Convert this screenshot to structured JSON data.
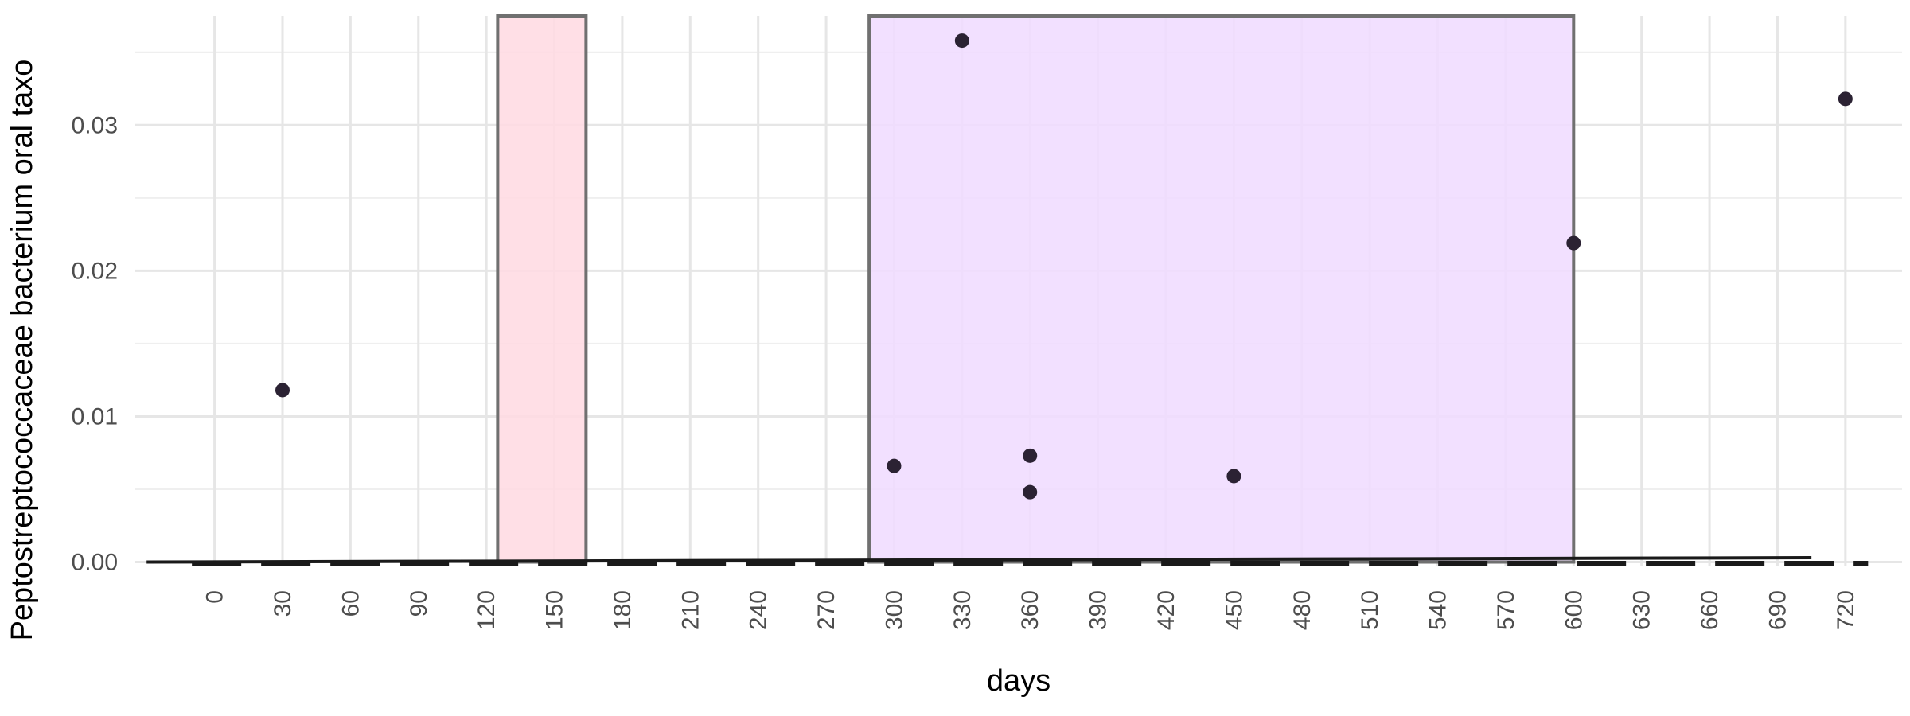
{
  "chart_data": {
    "type": "scatter",
    "xlabel": "days",
    "ylabel": "Peptostreptococcaceae bacterium oral taxo",
    "xlim": [
      -35,
      745
    ],
    "ylim": [
      -0.0003,
      0.0375
    ],
    "x_ticks": [
      0,
      30,
      60,
      90,
      120,
      150,
      180,
      210,
      240,
      270,
      300,
      330,
      360,
      390,
      420,
      450,
      480,
      510,
      540,
      570,
      600,
      630,
      660,
      690,
      720
    ],
    "y_ticks": [
      0.0,
      0.01,
      0.02,
      0.03
    ],
    "y_tick_labels": [
      "0.00",
      "0.01",
      "0.02",
      "0.03"
    ],
    "grid": true,
    "legend": "none",
    "shaded_regions": [
      {
        "x_start": 125,
        "x_end": 164,
        "color": "#ffdbe2"
      },
      {
        "x_start": 289,
        "x_end": 600,
        "color": "#f0dcff"
      }
    ],
    "points": [
      {
        "x": 30,
        "y": 0.0118
      },
      {
        "x": 300,
        "y": 0.0066
      },
      {
        "x": 330,
        "y": 0.0358
      },
      {
        "x": 360,
        "y": 0.0073
      },
      {
        "x": 360,
        "y": 0.0048
      },
      {
        "x": 450,
        "y": 0.0059
      },
      {
        "x": 600,
        "y": 0.0219
      },
      {
        "x": 720,
        "y": 0.0318
      }
    ],
    "baseline_dashed": {
      "x_start": -10,
      "x_end": 730,
      "y": 0.0
    },
    "trend_line": {
      "x_start": -30,
      "x_end": 705,
      "y_start": 0.0,
      "y_end": 0.0003
    }
  }
}
